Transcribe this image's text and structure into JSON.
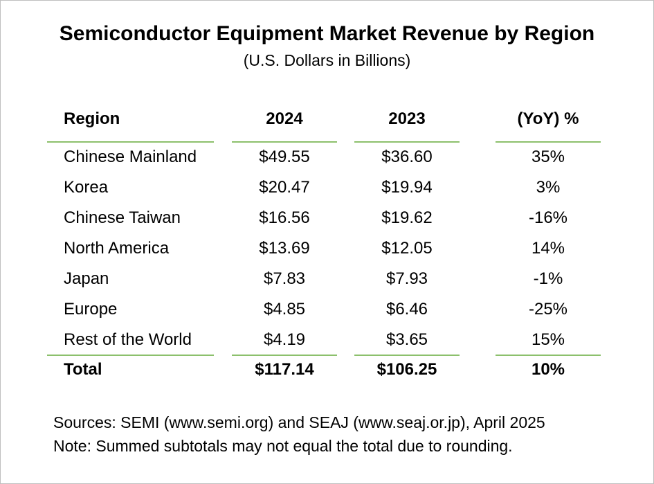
{
  "title": "Semiconductor Equipment Market Revenue by Region",
  "subtitle": "(U.S. Dollars in Billions)",
  "table": {
    "headers": [
      "Region",
      "2024",
      "2023",
      "(YoY) %"
    ],
    "rows": [
      [
        "Chinese Mainland",
        "$49.55",
        "$36.60",
        "35%"
      ],
      [
        "Korea",
        "$20.47",
        "$19.94",
        "3%"
      ],
      [
        "Chinese Taiwan",
        "$16.56",
        "$19.62",
        "-16%"
      ],
      [
        "North America",
        "$13.69",
        "$12.05",
        "14%"
      ],
      [
        "Japan",
        "$7.83",
        "$7.93",
        "-1%"
      ],
      [
        "Europe",
        "$4.85",
        "$6.46",
        "-25%"
      ],
      [
        "Rest of the World",
        "$4.19",
        "$3.65",
        "15%"
      ]
    ],
    "total": [
      "Total",
      "$117.14",
      "$106.25",
      "10%"
    ]
  },
  "footer": {
    "sources": "Sources: SEMI (www.semi.org) and SEAJ (www.seaj.or.jp), April 2025",
    "note": "Note: Summed subtotals may not equal the total due to rounding."
  },
  "colors": {
    "rule": "#8cc06c",
    "frame": "#bfbfbf"
  }
}
